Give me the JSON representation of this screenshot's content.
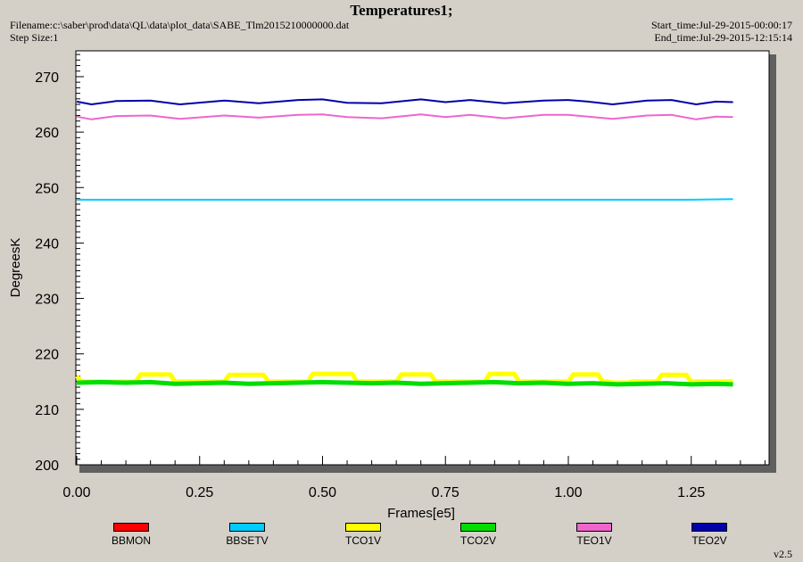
{
  "header": {
    "title": "Temperatures1;",
    "filename": "Filename:c:\\saber\\prod\\data\\QL\\data\\plot_data\\SABE_Tlm2015210000000.dat",
    "step_size": "Step Size:1",
    "start_time": "Start_time:Jul-29-2015-00:00:17",
    "end_time": "End_time:Jul-29-2015-12:15:14"
  },
  "version": "v2.5",
  "chart_data": {
    "type": "line",
    "title": "Temperatures1;",
    "xlabel": "Frames[e5]",
    "ylabel": "DegreesK",
    "xlim": [
      0,
      1.4
    ],
    "ylim": [
      200,
      275
    ],
    "x_ticks": [
      "0.00",
      "0.25",
      "0.50",
      "0.75",
      "1.00",
      "1.25"
    ],
    "y_ticks": [
      "200",
      "210",
      "220",
      "230",
      "240",
      "250",
      "260",
      "270"
    ],
    "grid": false,
    "legend_position": "bottom",
    "series": [
      {
        "name": "BBMON",
        "color": "#ff0000",
        "x": [],
        "y": []
      },
      {
        "name": "BBSETV",
        "color": "#00ccff",
        "x": [
          0,
          0.25,
          0.5,
          0.75,
          1.0,
          1.25,
          1.335
        ],
        "y": [
          247.8,
          247.8,
          247.8,
          247.8,
          247.8,
          247.8,
          247.9
        ]
      },
      {
        "name": "TCO1V",
        "color": "#ffff00",
        "x": [
          0,
          0.01,
          0.12,
          0.13,
          0.19,
          0.2,
          0.3,
          0.31,
          0.38,
          0.39,
          0.47,
          0.48,
          0.56,
          0.57,
          0.65,
          0.66,
          0.72,
          0.73,
          0.83,
          0.84,
          0.89,
          0.9,
          1.0,
          1.01,
          1.06,
          1.07,
          1.08,
          1.09,
          1.12,
          1.13,
          1.18,
          1.19,
          1.24,
          1.25,
          1.335
        ],
        "y": [
          216.0,
          215.0,
          215.0,
          216.3,
          216.3,
          215.0,
          215.0,
          216.2,
          216.2,
          215.0,
          215.0,
          216.4,
          216.4,
          215.0,
          215.0,
          216.3,
          216.3,
          215.0,
          215.0,
          216.4,
          216.4,
          215.0,
          215.0,
          216.3,
          216.3,
          215.0,
          215.0,
          214.8,
          214.8,
          215.0,
          215.0,
          216.2,
          216.2,
          215.0,
          215.0
        ]
      },
      {
        "name": "TCO2V",
        "color": "#00dd00",
        "x": [
          0,
          0.05,
          0.1,
          0.15,
          0.2,
          0.25,
          0.3,
          0.35,
          0.4,
          0.45,
          0.5,
          0.55,
          0.6,
          0.65,
          0.7,
          0.75,
          0.8,
          0.85,
          0.9,
          0.95,
          1.0,
          1.05,
          1.1,
          1.15,
          1.2,
          1.25,
          1.3,
          1.335
        ],
        "y": [
          214.8,
          214.9,
          214.8,
          214.9,
          214.6,
          214.7,
          214.8,
          214.6,
          214.7,
          214.8,
          214.9,
          214.8,
          214.7,
          214.8,
          214.6,
          214.7,
          214.8,
          214.9,
          214.7,
          214.8,
          214.6,
          214.7,
          214.5,
          214.6,
          214.7,
          214.5,
          214.6,
          214.5
        ]
      },
      {
        "name": "TEO1V",
        "color": "#ee66cc",
        "x": [
          0,
          0.03,
          0.08,
          0.15,
          0.21,
          0.3,
          0.37,
          0.45,
          0.5,
          0.55,
          0.62,
          0.7,
          0.75,
          0.8,
          0.87,
          0.95,
          1.0,
          1.04,
          1.09,
          1.16,
          1.21,
          1.26,
          1.3,
          1.335
        ],
        "y": [
          262.8,
          262.3,
          262.9,
          263.0,
          262.4,
          263.0,
          262.6,
          263.1,
          263.2,
          262.7,
          262.5,
          263.2,
          262.7,
          263.1,
          262.5,
          263.1,
          263.1,
          262.8,
          262.4,
          263.0,
          263.1,
          262.3,
          262.8,
          262.7
        ]
      },
      {
        "name": "TEO2V",
        "color": "#0000aa",
        "x": [
          0,
          0.03,
          0.08,
          0.15,
          0.21,
          0.3,
          0.37,
          0.45,
          0.5,
          0.55,
          0.62,
          0.7,
          0.75,
          0.8,
          0.87,
          0.95,
          1.0,
          1.04,
          1.09,
          1.16,
          1.21,
          1.26,
          1.3,
          1.335
        ],
        "y": [
          265.5,
          265.0,
          265.6,
          265.7,
          265.0,
          265.7,
          265.2,
          265.8,
          265.9,
          265.3,
          265.2,
          265.9,
          265.4,
          265.8,
          265.2,
          265.7,
          265.8,
          265.5,
          265.0,
          265.7,
          265.8,
          265.0,
          265.5,
          265.4
        ]
      }
    ]
  }
}
